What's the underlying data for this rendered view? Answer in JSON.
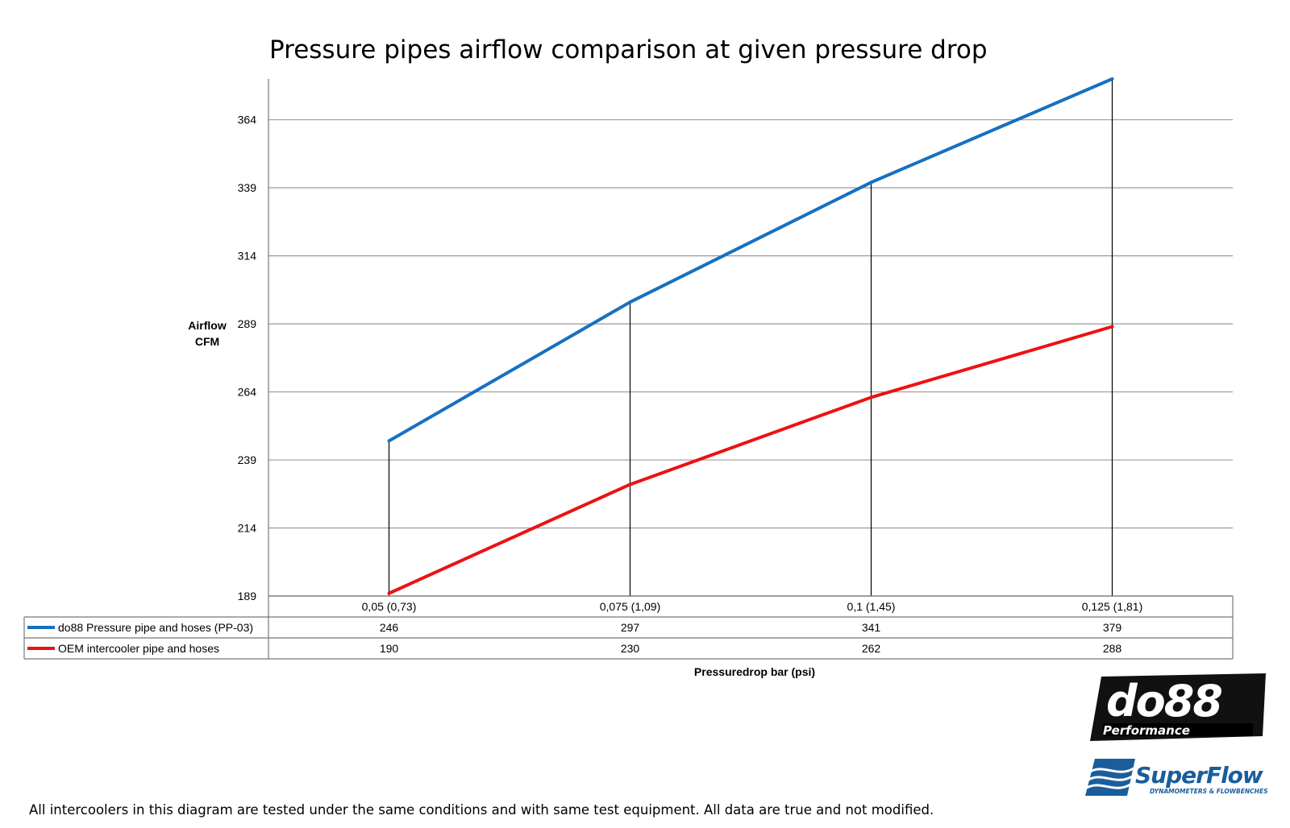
{
  "chart_data": {
    "type": "line",
    "title": "Pressure pipes airflow comparison at given pressure drop",
    "xlabel": "Pressuredrop bar (psi)",
    "ylabel_line1": "Airflow",
    "ylabel_line2": "CFM",
    "categories": [
      "0,05 (0,73)",
      "0,075 (1,09)",
      "0,1 (1,45)",
      "0,125 (1,81)"
    ],
    "yticks": [
      189,
      214,
      239,
      264,
      289,
      314,
      339,
      364
    ],
    "ylim": [
      189,
      379
    ],
    "grid": true,
    "legend_placement": "data table below plot",
    "series": [
      {
        "name": "do88 Pressure pipe and hoses (PP-03)",
        "color": "#1670c0",
        "values": [
          246,
          297,
          341,
          379
        ]
      },
      {
        "name": "OEM intercooler pipe and hoses",
        "color": "#ee1111",
        "values": [
          190,
          230,
          262,
          288
        ]
      }
    ],
    "value_labels": {
      "s0": [
        "246",
        "297",
        "341",
        "379"
      ],
      "s1": [
        "190",
        "230",
        "262",
        "288"
      ]
    }
  },
  "footnote": "All intercoolers in this diagram are tested under the same conditions and with same test equipment. All data are true and not modified.",
  "logos": {
    "do88": {
      "name": "do88",
      "sub": "Performance"
    },
    "superflow": {
      "name": "SuperFlow",
      "sub": "DYNAMOMETERS & FLOWBENCHES"
    }
  }
}
